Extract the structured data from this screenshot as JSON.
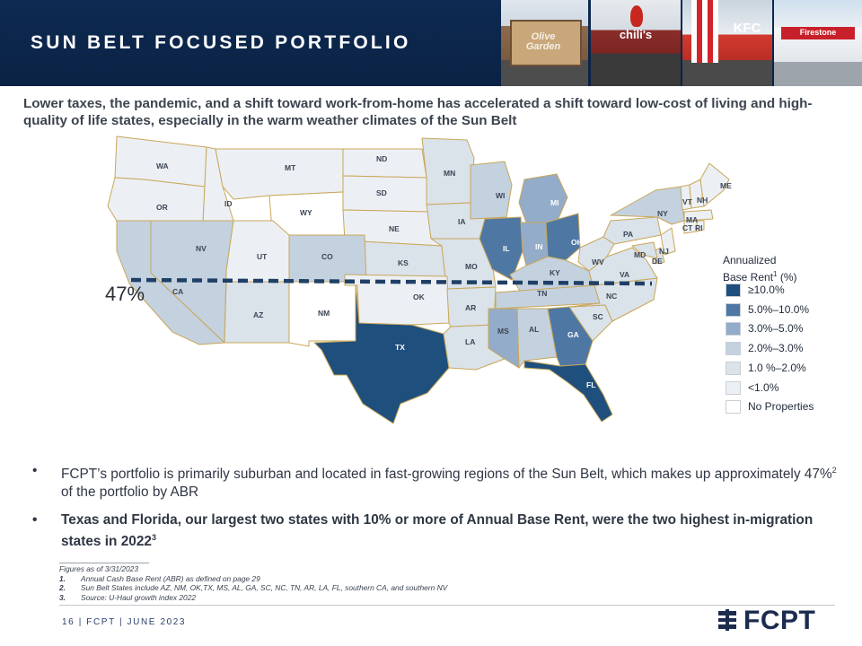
{
  "header": {
    "title": "SUN BELT FOCUSED PORTFOLIO"
  },
  "photos": [
    {
      "sign": "Olive Garden"
    },
    {
      "sign": "chili's"
    },
    {
      "sign": "KFC"
    },
    {
      "sign": "Firestone"
    }
  ],
  "intro": "Lower taxes, the pandemic, and a shift toward work-from-home has accelerated a shift toward low-cost of living and high-quality of life states, especially in the warm weather climates of the Sun Belt",
  "map": {
    "sunbelt_percent_label": "47%",
    "colors": {
      "ge10": "#1f4f7d",
      "5to10": "#4e77a4",
      "3to5": "#93acc9",
      "2to3": "#c4d1df",
      "1to2": "#dae2ea",
      "lt1": "#ecf0f4",
      "none": "#ffffff",
      "border": "#c9a75a",
      "sunbelt_line": "#1f3f66"
    },
    "states": [
      {
        "code": "WA",
        "tier": "lt1"
      },
      {
        "code": "OR",
        "tier": "lt1"
      },
      {
        "code": "ID",
        "tier": "lt1"
      },
      {
        "code": "MT",
        "tier": "lt1"
      },
      {
        "code": "WY",
        "tier": "none"
      },
      {
        "code": "ND",
        "tier": "lt1"
      },
      {
        "code": "SD",
        "tier": "lt1"
      },
      {
        "code": "NE",
        "tier": "lt1"
      },
      {
        "code": "KS",
        "tier": "1to2"
      },
      {
        "code": "MN",
        "tier": "1to2"
      },
      {
        "code": "IA",
        "tier": "1to2"
      },
      {
        "code": "MO",
        "tier": "1to2"
      },
      {
        "code": "WI",
        "tier": "2to3"
      },
      {
        "code": "IL",
        "tier": "5to10"
      },
      {
        "code": "MI",
        "tier": "3to5"
      },
      {
        "code": "IN",
        "tier": "3to5"
      },
      {
        "code": "OH",
        "tier": "5to10"
      },
      {
        "code": "KY",
        "tier": "2to3"
      },
      {
        "code": "TN",
        "tier": "2to3"
      },
      {
        "code": "CA",
        "tier": "2to3"
      },
      {
        "code": "NV",
        "tier": "2to3"
      },
      {
        "code": "UT",
        "tier": "lt1"
      },
      {
        "code": "CO",
        "tier": "2to3"
      },
      {
        "code": "AZ",
        "tier": "1to2"
      },
      {
        "code": "NM",
        "tier": "none"
      },
      {
        "code": "TX",
        "tier": "ge10"
      },
      {
        "code": "OK",
        "tier": "lt1"
      },
      {
        "code": "AR",
        "tier": "1to2"
      },
      {
        "code": "LA",
        "tier": "1to2"
      },
      {
        "code": "MS",
        "tier": "3to5"
      },
      {
        "code": "AL",
        "tier": "2to3"
      },
      {
        "code": "GA",
        "tier": "5to10"
      },
      {
        "code": "FL",
        "tier": "ge10"
      },
      {
        "code": "SC",
        "tier": "1to2"
      },
      {
        "code": "NC",
        "tier": "1to2"
      },
      {
        "code": "VA",
        "tier": "1to2"
      },
      {
        "code": "WV",
        "tier": "1to2"
      },
      {
        "code": "PA",
        "tier": "1to2"
      },
      {
        "code": "NY",
        "tier": "2to3"
      },
      {
        "code": "VT",
        "tier": "lt1"
      },
      {
        "code": "NH",
        "tier": "lt1"
      },
      {
        "code": "ME",
        "tier": "lt1"
      },
      {
        "code": "MA",
        "tier": "lt1"
      },
      {
        "code": "CT",
        "tier": "lt1"
      },
      {
        "code": "RI",
        "tier": "lt1"
      },
      {
        "code": "NJ",
        "tier": "lt1"
      },
      {
        "code": "DE",
        "tier": "1to2"
      },
      {
        "code": "MD",
        "tier": "1to2"
      }
    ]
  },
  "legend": {
    "title_line1": "Annualized",
    "title_line2": "Base Rent",
    "title_sup": "1",
    "title_suffix": " (%)",
    "items": [
      {
        "label": "≥10.0%",
        "color": "#1f4f7d"
      },
      {
        "label": "5.0%–10.0%",
        "color": "#4e77a4"
      },
      {
        "label": "3.0%–5.0%",
        "color": "#93acc9"
      },
      {
        "label": "2.0%–3.0%",
        "color": "#c4d1df"
      },
      {
        "label": "1.0 %–2.0%",
        "color": "#dae2ea"
      },
      {
        "label": "<1.0%",
        "color": "#ecf0f4"
      },
      {
        "label": "No Properties",
        "color": "#ffffff"
      }
    ]
  },
  "bullets": {
    "b1_text": "FCPT’s portfolio is primarily suburban and located in fast-growing regions of the Sun Belt, which makes up approximately 47%",
    "b1_sup": "2",
    "b1_tail": " of the portfolio by ABR",
    "b2_text": "Texas and Florida, our largest two states with 10% or more of Annual Base Rent, were the two highest in-migration states in 2022",
    "b2_sup": "3",
    "marker": "•"
  },
  "footnotes": {
    "asof": "Figures as of 3/31/2023",
    "items": [
      {
        "num": "1.",
        "text": "Annual Cash Base Rent (ABR) as defined on page 29"
      },
      {
        "num": "2.",
        "text": "Sun Belt States include AZ, NM, OK,TX, MS, AL, GA, SC, NC, TN, AR, LA, FL, southern CA, and southern NV"
      },
      {
        "num": "3.",
        "text": "Source: U-Haul growth index 2022"
      }
    ]
  },
  "footer": {
    "text": "16 | FCPT | JUNE 2023"
  },
  "logo": {
    "text": "FCPT"
  }
}
